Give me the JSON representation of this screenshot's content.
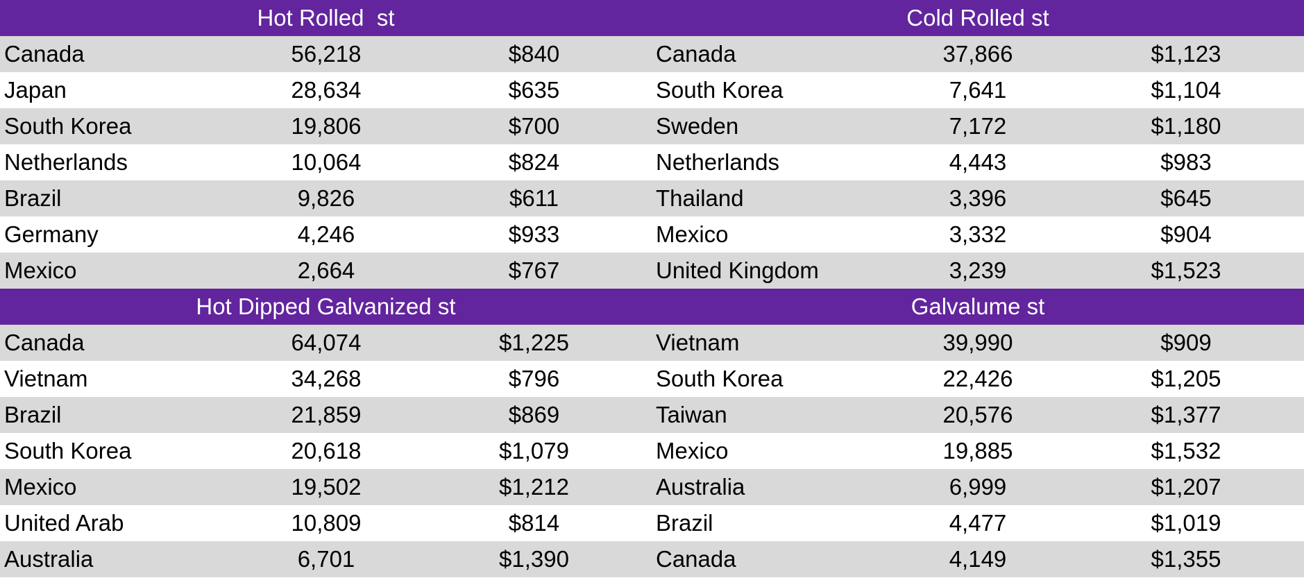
{
  "colors": {
    "header_bg": "#62259d",
    "header_text": "#ffffff",
    "row_shade": "#d9d9d9",
    "row_plain": "#ffffff"
  },
  "hot_rolled": {
    "title": "Hot Rolled  st",
    "rows": [
      {
        "country": "Canada",
        "quantity": "56,218",
        "price": "$840"
      },
      {
        "country": "Japan",
        "quantity": "28,634",
        "price": "$635"
      },
      {
        "country": "South Korea",
        "quantity": "19,806",
        "price": "$700"
      },
      {
        "country": "Netherlands",
        "quantity": "10,064",
        "price": "$824"
      },
      {
        "country": "Brazil",
        "quantity": "9,826",
        "price": "$611"
      },
      {
        "country": "Germany",
        "quantity": "4,246",
        "price": "$933"
      },
      {
        "country": "Mexico",
        "quantity": "2,664",
        "price": "$767"
      }
    ]
  },
  "cold_rolled": {
    "title": "Cold Rolled st",
    "rows": [
      {
        "country": "Canada",
        "quantity": "37,866",
        "price": "$1,123"
      },
      {
        "country": "South Korea",
        "quantity": "7,641",
        "price": "$1,104"
      },
      {
        "country": "Sweden",
        "quantity": "7,172",
        "price": "$1,180"
      },
      {
        "country": "Netherlands",
        "quantity": "4,443",
        "price": "$983"
      },
      {
        "country": "Thailand",
        "quantity": "3,396",
        "price": "$645"
      },
      {
        "country": "Mexico",
        "quantity": "3,332",
        "price": "$904"
      },
      {
        "country": "United Kingdom",
        "quantity": "3,239",
        "price": "$1,523"
      }
    ]
  },
  "hot_dipped": {
    "title": "Hot Dipped Galvanized st",
    "rows": [
      {
        "country": "Canada",
        "quantity": "64,074",
        "price": "$1,225"
      },
      {
        "country": "Vietnam",
        "quantity": "34,268",
        "price": "$796"
      },
      {
        "country": "Brazil",
        "quantity": "21,859",
        "price": "$869"
      },
      {
        "country": "South Korea",
        "quantity": "20,618",
        "price": "$1,079"
      },
      {
        "country": "Mexico",
        "quantity": "19,502",
        "price": "$1,212"
      },
      {
        "country": "United Arab",
        "quantity": "10,809",
        "price": "$814"
      },
      {
        "country": "Australia",
        "quantity": "6,701",
        "price": "$1,390"
      }
    ]
  },
  "galvalume": {
    "title": "Galvalume st",
    "rows": [
      {
        "country": "Vietnam",
        "quantity": "39,990",
        "price": "$909"
      },
      {
        "country": "South Korea",
        "quantity": "22,426",
        "price": "$1,205"
      },
      {
        "country": "Taiwan",
        "quantity": "20,576",
        "price": "$1,377"
      },
      {
        "country": "Mexico",
        "quantity": "19,885",
        "price": "$1,532"
      },
      {
        "country": "Australia",
        "quantity": "6,999",
        "price": "$1,207"
      },
      {
        "country": "Brazil",
        "quantity": "4,477",
        "price": "$1,019"
      },
      {
        "country": "Canada",
        "quantity": "4,149",
        "price": "$1,355"
      }
    ]
  }
}
